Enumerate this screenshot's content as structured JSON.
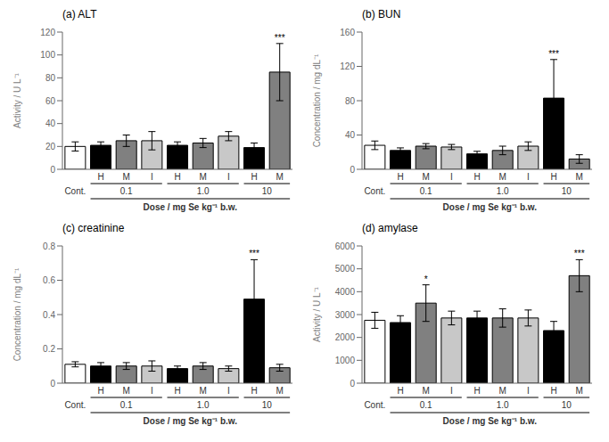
{
  "chart_data": [
    {
      "type": "bar",
      "title": "(a) ALT",
      "ylabel": "Activity / U L⁻¹",
      "xlabel": "Dose / mg Se kg⁻¹ b.w.",
      "categories": [
        null,
        "H",
        "M",
        "I",
        "H",
        "M",
        "I",
        "H",
        "M"
      ],
      "groups": [
        "Cont.",
        "0.1",
        "0.1",
        "0.1",
        "1.0",
        "1.0",
        "1.0",
        "10",
        "10"
      ],
      "values": [
        20,
        21,
        25,
        25,
        21,
        23,
        29,
        19,
        85
      ],
      "errors": [
        4,
        3,
        5,
        8,
        3,
        4,
        4,
        4,
        25
      ],
      "colors": [
        "white",
        "black",
        "#808080",
        "#c8c8c8",
        "black",
        "#808080",
        "#c8c8c8",
        "black",
        "#808080"
      ],
      "annotations": [
        null,
        null,
        null,
        null,
        null,
        null,
        null,
        null,
        "***"
      ],
      "ylim": [
        0,
        120
      ],
      "yticks": [
        0,
        20,
        40,
        60,
        80,
        100,
        120
      ]
    },
    {
      "type": "bar",
      "title": "(b) BUN",
      "ylabel": "Concentration / mg dL⁻¹",
      "xlabel": "Dose / mg Se kg⁻¹ b.w.",
      "categories": [
        null,
        "H",
        "M",
        "I",
        "H",
        "M",
        "I",
        "H",
        "M"
      ],
      "groups": [
        "Cont.",
        "0.1",
        "0.1",
        "0.1",
        "1.0",
        "1.0",
        "1.0",
        "10",
        "10"
      ],
      "values": [
        28,
        22,
        27,
        26,
        18,
        22,
        27,
        83,
        12
      ],
      "errors": [
        5,
        3,
        3,
        3,
        3,
        5,
        5,
        45,
        5
      ],
      "colors": [
        "white",
        "black",
        "#808080",
        "#c8c8c8",
        "black",
        "#808080",
        "#c8c8c8",
        "black",
        "#808080"
      ],
      "annotations": [
        null,
        null,
        null,
        null,
        null,
        null,
        null,
        "***",
        null
      ],
      "ylim": [
        0,
        160
      ],
      "yticks": [
        0,
        40,
        80,
        120,
        160
      ]
    },
    {
      "type": "bar",
      "title": "(c) creatinine",
      "ylabel": "Concentration / mg dL⁻¹",
      "xlabel": "Dose / mg Se kg⁻¹ b.w.",
      "categories": [
        null,
        "H",
        "M",
        "I",
        "H",
        "M",
        "I",
        "H",
        "M"
      ],
      "groups": [
        "Cont.",
        "0.1",
        "0.1",
        "0.1",
        "1.0",
        "1.0",
        "1.0",
        "10",
        "10"
      ],
      "values": [
        0.11,
        0.1,
        0.1,
        0.1,
        0.085,
        0.1,
        0.085,
        0.49,
        0.09
      ],
      "errors": [
        0.015,
        0.02,
        0.02,
        0.03,
        0.015,
        0.02,
        0.015,
        0.23,
        0.02
      ],
      "colors": [
        "white",
        "black",
        "#808080",
        "#c8c8c8",
        "black",
        "#808080",
        "#c8c8c8",
        "black",
        "#808080"
      ],
      "annotations": [
        null,
        null,
        null,
        null,
        null,
        null,
        null,
        "***",
        null
      ],
      "ylim": [
        0,
        0.8
      ],
      "yticks": [
        0,
        0.2,
        0.4,
        0.6,
        0.8
      ]
    },
    {
      "type": "bar",
      "title": "(d) amylase",
      "ylabel": "Activity / U L⁻¹",
      "xlabel": "Dose / mg Se kg⁻¹ b.w.",
      "categories": [
        null,
        "H",
        "M",
        "I",
        "H",
        "M",
        "I",
        "H",
        "M"
      ],
      "groups": [
        "Cont.",
        "0.1",
        "0.1",
        "0.1",
        "1.0",
        "1.0",
        "1.0",
        "10",
        "10"
      ],
      "values": [
        2750,
        2650,
        3500,
        2850,
        2850,
        2850,
        2850,
        2300,
        4700
      ],
      "errors": [
        350,
        300,
        800,
        300,
        300,
        400,
        350,
        400,
        700
      ],
      "colors": [
        "white",
        "black",
        "#808080",
        "#c8c8c8",
        "black",
        "#808080",
        "#c8c8c8",
        "black",
        "#808080"
      ],
      "annotations": [
        null,
        null,
        "*",
        null,
        null,
        null,
        null,
        null,
        "***"
      ],
      "ylim": [
        0,
        6000
      ],
      "yticks": [
        0,
        1000,
        2000,
        3000,
        4000,
        5000,
        6000
      ]
    }
  ]
}
